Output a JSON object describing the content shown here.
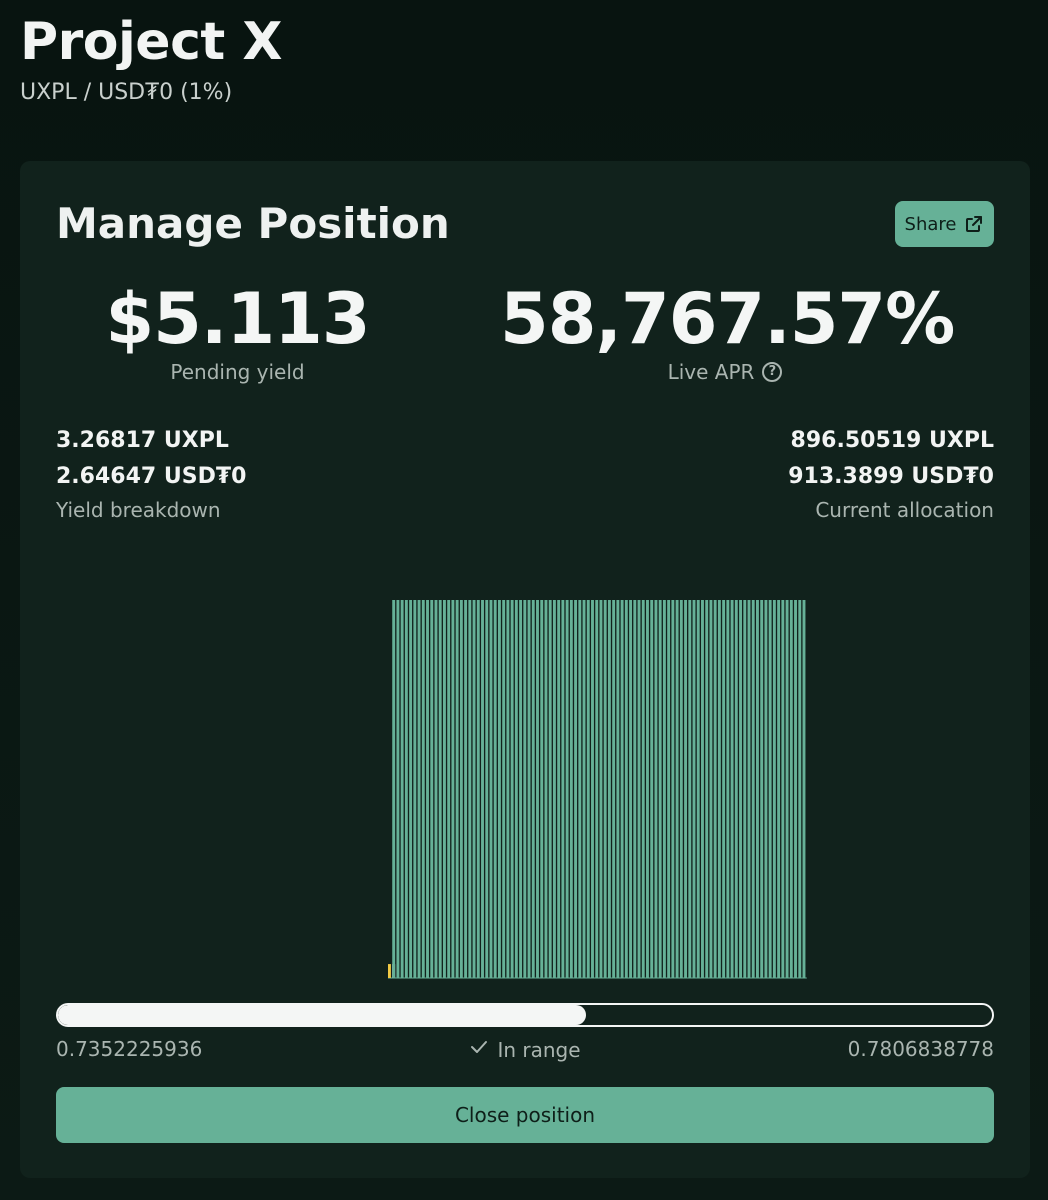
{
  "header": {
    "title": "Project X",
    "pair": "UXPL / USD₮0 (1%)"
  },
  "card": {
    "title": "Manage Position",
    "share_label": "Share",
    "share_icon": "external-link-icon",
    "pending_yield": {
      "value": "$5.113",
      "label": "Pending yield"
    },
    "live_apr": {
      "value": "58,767.57%",
      "label": "Live APR",
      "icon": "help-circle-icon"
    },
    "yield_breakdown": {
      "token_a": "3.26817 UXPL",
      "token_b": "2.64647 USD₮0",
      "label": "Yield breakdown"
    },
    "current_allocation": {
      "token_a": "896.50519 UXPL",
      "token_b": "913.3899 USD₮0",
      "label": "Current allocation"
    },
    "range": {
      "min": "0.7352225936",
      "max": "0.7806838778",
      "status": "In range",
      "status_icon": "check-icon",
      "current_fraction": 0.565
    },
    "close_label": "Close position"
  },
  "chart_data": {
    "type": "bar",
    "values": [
      0.7,
      19,
      19,
      19,
      19,
      19,
      19,
      19,
      19,
      19,
      19,
      19,
      19,
      19,
      19,
      19,
      19,
      19,
      19,
      19,
      19,
      19,
      19,
      19,
      19,
      19,
      19,
      19,
      19,
      19,
      19,
      19,
      19,
      19,
      19,
      19,
      19,
      19,
      19,
      19,
      19,
      19,
      19,
      19,
      19,
      19,
      19,
      19,
      19,
      19,
      19,
      19,
      19,
      19,
      19,
      19,
      19,
      19,
      19,
      19,
      19,
      19,
      19,
      19,
      19,
      19,
      19,
      19,
      19,
      19,
      19,
      19,
      19,
      19,
      19,
      19,
      19,
      19,
      19,
      19,
      19,
      19,
      19,
      19,
      19,
      19,
      19,
      19,
      19,
      19,
      19,
      19,
      19,
      19,
      19,
      19,
      19,
      19,
      19
    ],
    "current_index": 0,
    "colors": {
      "bar": "#66b197",
      "current": "#f2cb45",
      "current_edge": "#ffffff"
    }
  }
}
